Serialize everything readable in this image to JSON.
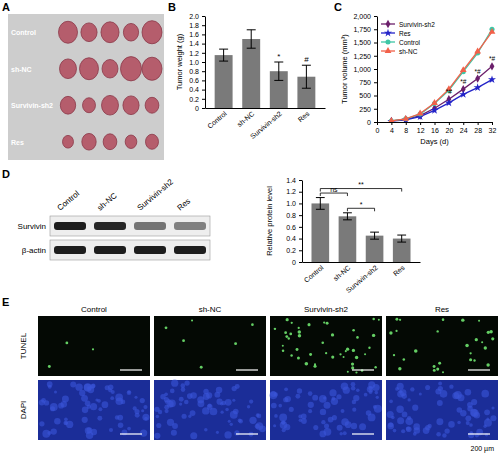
{
  "chart_data": [
    {
      "type": "bar",
      "panel_label": "B",
      "y_label": "Tumor weight (g)",
      "categories": [
        "Control",
        "sh-NC",
        "Survivin-sh2",
        "Res"
      ],
      "values": [
        1.15,
        1.5,
        0.8,
        0.68
      ],
      "errors": [
        0.13,
        0.2,
        0.2,
        0.25
      ],
      "significance": [
        null,
        null,
        "*",
        "#"
      ],
      "color": "#7a7a7a",
      "ylim": [
        0,
        2
      ],
      "yticks": [
        0,
        0.2,
        0.4,
        0.6,
        0.8,
        {
          "value": 1,
          "label": "1.0"
        },
        1.2,
        1.4,
        1.6,
        1.8,
        {
          "value": 2,
          "label": "2.0"
        }
      ]
    },
    {
      "type": "line",
      "panel_label": "C",
      "x_label": "Days (d)",
      "y_label": "Tumor volume (mm³)",
      "x": [
        4,
        8,
        12,
        16,
        20,
        24,
        28,
        32
      ],
      "xlim": [
        0,
        32
      ],
      "xticks": [
        0,
        4,
        8,
        12,
        16,
        20,
        24,
        28,
        32
      ],
      "ylim": [
        0,
        2000
      ],
      "yticks": [
        0,
        250,
        500,
        750,
        {
          "value": 1000,
          "label": "1,000"
        },
        {
          "value": 1250,
          "label": "1,250"
        },
        {
          "value": 1500,
          "label": "1,500"
        },
        {
          "value": 1750,
          "label": "1,750"
        },
        {
          "value": 2000,
          "label": "2,000"
        }
      ],
      "legend": "upper left",
      "series": [
        {
          "name": "Survivin-sh2",
          "color": "#6b1f6b",
          "marker": "diamond",
          "values": [
            20,
            50,
            120,
            260,
            430,
            620,
            820,
            1050
          ],
          "significance": [
            null,
            null,
            null,
            null,
            "*#",
            "*#",
            "*#",
            "*#"
          ]
        },
        {
          "name": "Res",
          "color": "#2323c8",
          "marker": "star",
          "values": [
            15,
            40,
            100,
            220,
            360,
            520,
            650,
            800
          ]
        },
        {
          "name": "Control",
          "color": "#3fc6a6",
          "marker": "circle",
          "values": [
            20,
            60,
            150,
            350,
            600,
            950,
            1300,
            1750
          ]
        },
        {
          "name": "sh-NC",
          "color": "#f2614a",
          "marker": "triangle",
          "values": [
            20,
            60,
            160,
            360,
            620,
            980,
            1330,
            1700
          ]
        }
      ]
    },
    {
      "type": "bar",
      "y_label": "Relative protein level",
      "categories": [
        "Control",
        "sh-NC",
        "Survivin-sh2",
        "Res"
      ],
      "values": [
        1.0,
        0.78,
        0.45,
        0.4
      ],
      "errors": [
        0.1,
        0.06,
        0.06,
        0.06
      ],
      "color": "#7a7a7a",
      "ylim": [
        0,
        1.4
      ],
      "yticks": [
        0,
        0.2,
        0.4,
        0.6,
        0.8,
        {
          "value": 1,
          "label": "1.0"
        },
        1.2,
        1.4
      ],
      "comparisons": [
        {
          "from": "Control",
          "to": "sh-NC",
          "label": "ns"
        },
        {
          "from": "sh-NC",
          "to": "Survivin-sh2",
          "label": "*"
        },
        {
          "from": "Control",
          "to": "Res",
          "label": "**"
        }
      ]
    }
  ],
  "photo_panel": {
    "label": "A",
    "rows": [
      "Control",
      "sh-NC",
      "Survivin-sh2",
      "Res"
    ]
  },
  "blot_panel": {
    "label": "D",
    "lanes": [
      "Control",
      "sh-NC",
      "Survivin-sh2",
      "Res"
    ],
    "bands": [
      "Survivin",
      "β-actin"
    ]
  },
  "image_panel": {
    "label": "E",
    "columns": [
      "Control",
      "sh-NC",
      "Survivin-sh2",
      "Res"
    ],
    "rows": [
      "TUNEL",
      "DAPI"
    ],
    "scale_bar": "200 µm"
  }
}
